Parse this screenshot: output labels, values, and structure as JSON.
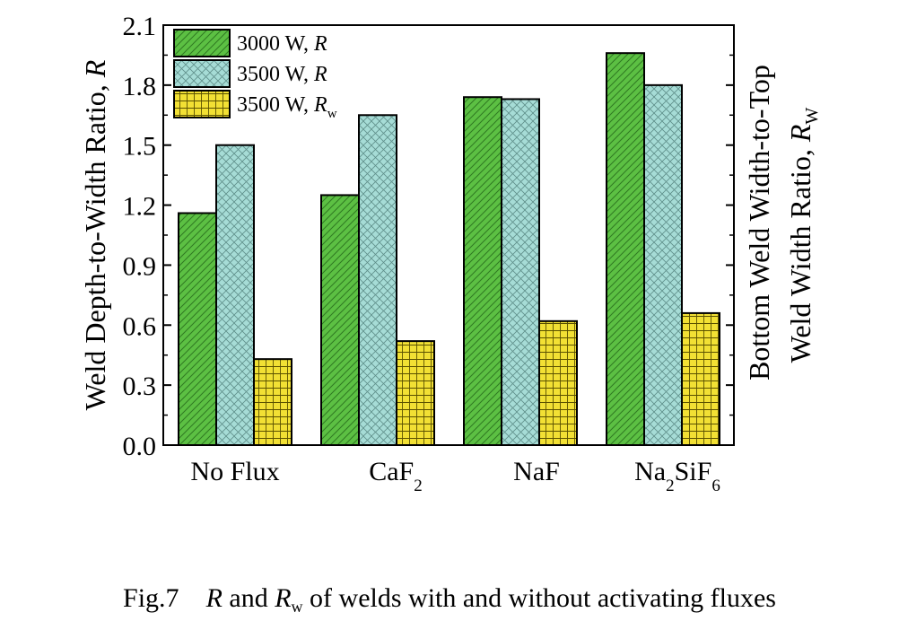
{
  "chart_data": {
    "type": "bar",
    "categories": [
      {
        "base": "No Flux",
        "parts": [
          {
            "t": "No Flux",
            "sub": false
          }
        ]
      },
      {
        "base": "CaF2",
        "parts": [
          {
            "t": "CaF",
            "sub": false
          },
          {
            "t": "2",
            "sub": true
          }
        ]
      },
      {
        "base": "NaF",
        "parts": [
          {
            "t": "NaF",
            "sub": false
          }
        ]
      },
      {
        "base": "Na2SiF6",
        "parts": [
          {
            "t": "Na",
            "sub": false
          },
          {
            "t": "2",
            "sub": true
          },
          {
            "t": "SiF",
            "sub": false
          },
          {
            "t": "6",
            "sub": true
          }
        ]
      }
    ],
    "series": [
      {
        "name": "3000 W, R",
        "legend_text": "3000 W, ",
        "legend_italic": "R",
        "legend_sub": "",
        "fill": "#5cc043",
        "pattern": "diagonal",
        "axis": "left",
        "values": [
          1.16,
          1.25,
          1.74,
          1.96
        ]
      },
      {
        "name": "3500 W, R",
        "legend_text": "3500 W, ",
        "legend_italic": "R",
        "legend_sub": "",
        "fill": "#a6dcd6",
        "pattern": "crosshatch",
        "axis": "left",
        "values": [
          1.5,
          1.65,
          1.73,
          1.8
        ]
      },
      {
        "name": "3500 W, Rw",
        "legend_text": "3500 W, ",
        "legend_italic": "R",
        "legend_sub": "w",
        "fill": "#f2e034",
        "pattern": "grid",
        "axis": "right",
        "values": [
          0.43,
          0.52,
          0.62,
          0.66
        ]
      }
    ],
    "ylim": [
      0,
      2.1
    ],
    "yticks": [
      "0.0",
      "0.3",
      "0.6",
      "0.9",
      "1.2",
      "1.5",
      "1.8",
      "2.1"
    ],
    "ylabel_text": "Weld Depth-to-Width Ratio, ",
    "ylabel_italic": "R",
    "y2label_line1": "Bottom Weld Width-to-Top",
    "y2label_line2_text": "Weld Width Ratio, ",
    "y2label_line2_italic": "R",
    "y2label_line2_sub": "W",
    "legend_position": "top-left",
    "grid": false
  },
  "caption": {
    "prefix": "Fig.7",
    "r1": "R",
    "and": " and ",
    "r2": "R",
    "r2_sub": "w",
    "rest": " of welds with and without activating fluxes"
  }
}
